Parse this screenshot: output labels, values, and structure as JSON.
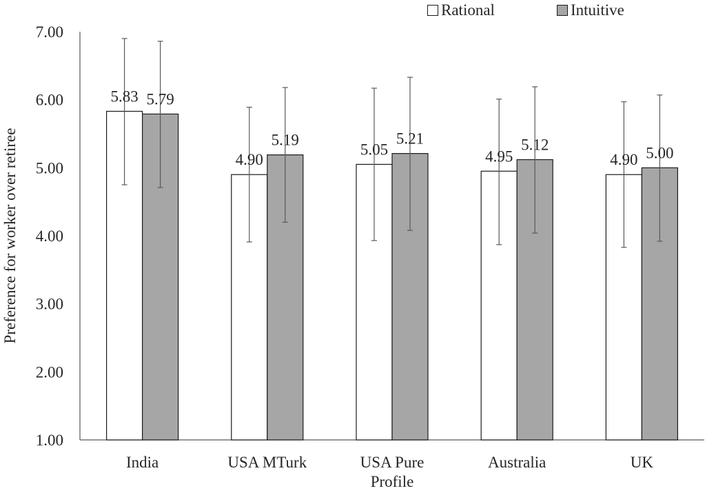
{
  "chart_data": {
    "type": "bar",
    "title": "",
    "xlabel": "",
    "ylabel": "Preference for worker over retiree",
    "ylim": [
      1.0,
      7.0
    ],
    "yticks": [
      "1.00",
      "2.00",
      "3.00",
      "4.00",
      "5.00",
      "6.00",
      "7.00"
    ],
    "grid": false,
    "legend_position": "top-right",
    "categories": [
      "India",
      "USA MTurk",
      "USA Pure Profile",
      "Australia",
      "UK"
    ],
    "series": [
      {
        "name": "Rational",
        "color": "#ffffff",
        "values": [
          5.83,
          4.9,
          5.05,
          4.95,
          4.9
        ],
        "labels": [
          "5.83",
          "4.90",
          "5.05",
          "4.95",
          "4.90"
        ],
        "error_low": [
          4.75,
          3.91,
          3.93,
          3.87,
          3.83
        ],
        "error_high": [
          6.9,
          5.89,
          6.17,
          6.01,
          5.97
        ]
      },
      {
        "name": "Intuitive",
        "color": "#a6a6a6",
        "values": [
          5.79,
          5.19,
          5.21,
          5.12,
          5.0
        ],
        "labels": [
          "5.79",
          "5.19",
          "5.21",
          "5.12",
          "5.00"
        ],
        "error_low": [
          4.71,
          4.2,
          4.08,
          4.04,
          3.92
        ],
        "error_high": [
          6.86,
          6.18,
          6.33,
          6.19,
          6.07
        ]
      }
    ]
  }
}
